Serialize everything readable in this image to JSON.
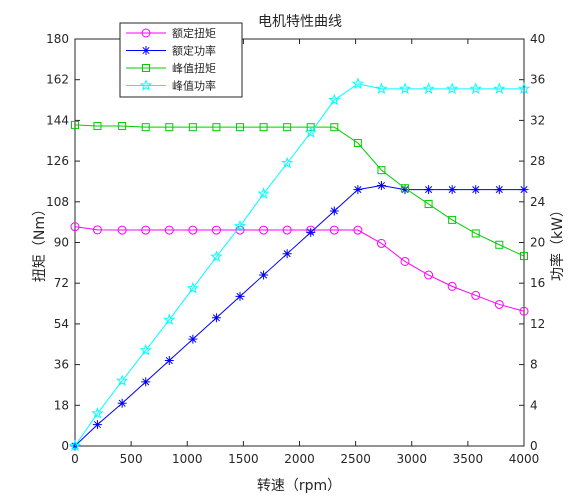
{
  "chart_data": {
    "type": "line",
    "title": "电机特性曲线",
    "xlabel": "转速（rpm）",
    "ylabel_left": "扭矩（Nm）",
    "ylabel_right": "功率（kW）",
    "xlim": [
      0,
      4000
    ],
    "ylim_left": [
      0,
      180
    ],
    "ylim_right": [
      0,
      40
    ],
    "xticks": [
      0,
      500,
      1000,
      1500,
      2000,
      2500,
      3000,
      3500,
      4000
    ],
    "yticks_left": [
      0,
      18,
      36,
      54,
      72,
      90,
      108,
      126,
      144,
      162,
      180
    ],
    "yticks_right": [
      0,
      4,
      8,
      12,
      16,
      20,
      24,
      28,
      32,
      36,
      40
    ],
    "grid": false,
    "legend_position": "top-left",
    "x": [
      0,
      200,
      420,
      630,
      840,
      1050,
      1260,
      1470,
      1680,
      1890,
      2100,
      2310,
      2520,
      2730,
      2940,
      3150,
      3360,
      3570,
      3780,
      4000
    ],
    "series": [
      {
        "name": "额定扭矩",
        "axis": "left",
        "color": "#ff00ff",
        "marker": "circle",
        "values": [
          97,
          95.6,
          95.5,
          95.5,
          95.5,
          95.5,
          95.5,
          95.5,
          95.5,
          95.5,
          95.5,
          95.5,
          95.5,
          89.6,
          81.6,
          75.6,
          70.6,
          66.6,
          62.6,
          59.6
        ]
      },
      {
        "name": "额定功率",
        "axis": "right",
        "color": "#0000ff",
        "marker": "asterisk",
        "values": [
          0,
          2.1,
          4.2,
          6.3,
          8.4,
          10.5,
          12.6,
          14.7,
          16.8,
          18.9,
          21.0,
          23.1,
          25.2,
          25.6,
          25.2,
          25.2,
          25.2,
          25.2,
          25.2,
          25.2
        ]
      },
      {
        "name": "峰值扭矩",
        "axis": "left",
        "color": "#00cc00",
        "marker": "square",
        "values": [
          142,
          141.5,
          141.5,
          141,
          141,
          141,
          141,
          141,
          141,
          141,
          141,
          141,
          134,
          122,
          114,
          107,
          100,
          94,
          89,
          84
        ]
      },
      {
        "name": "峰值功率",
        "axis": "right",
        "color": "#00ffff",
        "marker": "star",
        "values": [
          0,
          3.2,
          6.4,
          9.4,
          12.4,
          15.5,
          18.6,
          21.6,
          24.8,
          27.8,
          30.8,
          34,
          35.6,
          35.1,
          35.1,
          35.1,
          35.1,
          35.1,
          35.1,
          35.1
        ]
      }
    ]
  }
}
